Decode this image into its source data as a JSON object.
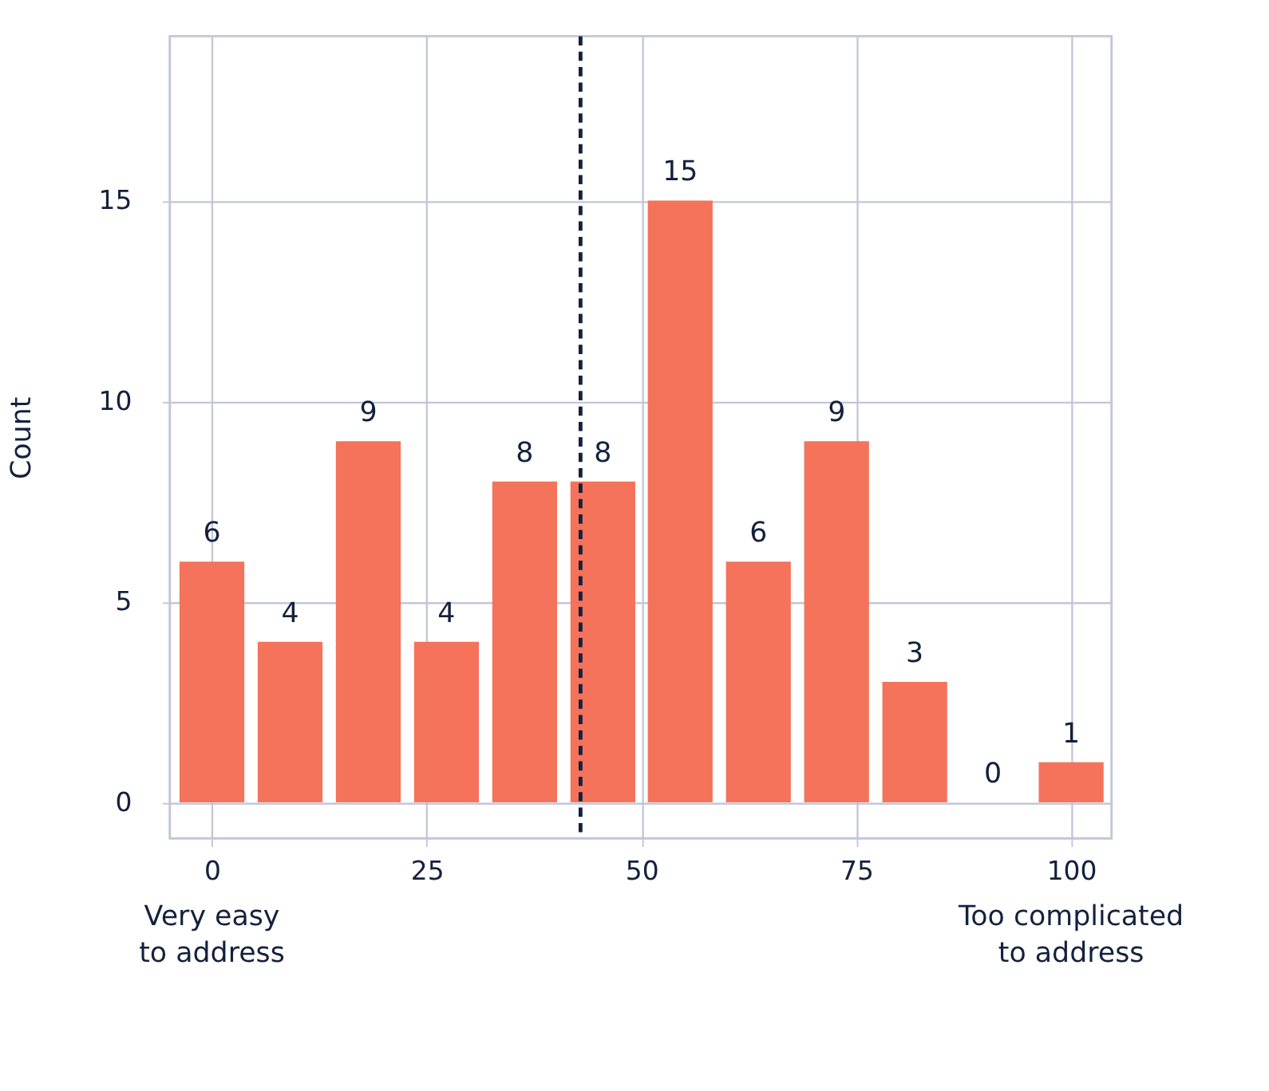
{
  "chart_data": {
    "type": "bar",
    "ylabel": "Count",
    "x": [
      0,
      9.1,
      18.2,
      27.3,
      36.4,
      45.5,
      54.5,
      63.6,
      72.7,
      81.8,
      90.9,
      100
    ],
    "values": [
      6,
      4,
      9,
      4,
      8,
      8,
      15,
      6,
      9,
      3,
      0,
      1
    ],
    "color": "#f4735a",
    "data_labels": true,
    "xlim": [
      -4.9,
      104.7
    ],
    "xticks": [
      0,
      25,
      50,
      75,
      100
    ],
    "ylim": [
      -0.9,
      19.1
    ],
    "yticks": [
      0,
      5,
      10,
      15
    ],
    "grid": true,
    "ref_lines": [
      {
        "axis": "x",
        "value": 42.9,
        "color": "#14213d",
        "line_style": "dashed"
      }
    ],
    "annotations": [
      "Very easy\nto address",
      "Too complicated\nto address"
    ]
  }
}
